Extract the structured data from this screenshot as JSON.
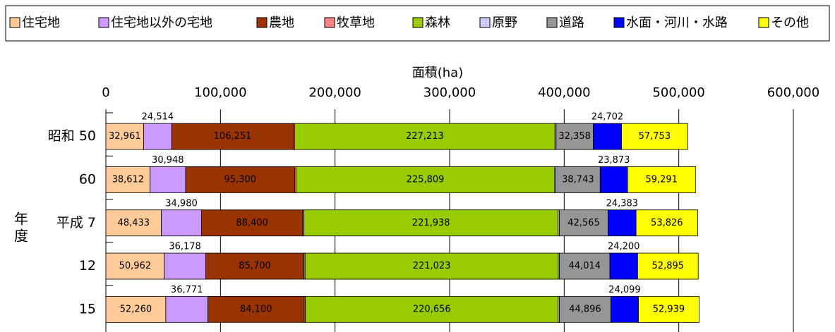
{
  "chart_data": {
    "type": "stacked_bar_horizontal",
    "x_axis_label": "面積(ha)",
    "y_axis_label": "年度",
    "categories": [
      "昭和 50",
      "60",
      "平成 7",
      "12",
      "15"
    ],
    "xlim": [
      0,
      600000
    ],
    "xticks": [
      0,
      {
        "value": 100000,
        "label": "100,000"
      },
      {
        "value": 200000,
        "label": "200,000"
      },
      {
        "value": 300000,
        "label": "300,000"
      },
      {
        "value": 400000,
        "label": "400,000"
      },
      {
        "value": 500000,
        "label": "500,000"
      },
      {
        "value": 600000,
        "label": "600,000"
      }
    ],
    "grid": true,
    "legend": "top",
    "series": [
      {
        "name": "住宅地",
        "color": "#ffcc99",
        "values": [
          32961,
          38612,
          48433,
          50962,
          52260
        ],
        "value_labels": [
          "32,961",
          "38,612",
          "48,433",
          "50,962",
          "52,260"
        ]
      },
      {
        "name": "住宅地以外の宅地",
        "color": "#cc99ff",
        "values": [
          24514,
          30948,
          34980,
          36178,
          36771
        ],
        "value_labels": [
          "24,514",
          "30,948",
          "34,980",
          "36,178",
          "36,771"
        ]
      },
      {
        "name": "農地",
        "color": "#993300",
        "values": [
          106251,
          95300,
          88400,
          85700,
          84100
        ],
        "value_labels": [
          "106,251",
          "95,300",
          "88,400",
          "85,700",
          "84,100"
        ]
      },
      {
        "name": "牧草地",
        "color": "#ff8080",
        "values": [
          1000,
          1000,
          1000,
          1000,
          1000
        ]
      },
      {
        "name": "森林",
        "color": "#99cc00",
        "values": [
          227213,
          225809,
          221938,
          221023,
          220656
        ],
        "value_labels": [
          "227,213",
          "225,809",
          "221,938",
          "221,023",
          "220,656"
        ]
      },
      {
        "name": "原野",
        "color": "#ccccff",
        "values": [
          1000,
          1000,
          1000,
          1000,
          1000
        ]
      },
      {
        "name": "道路",
        "color": "#969696",
        "values": [
          32358,
          38743,
          42565,
          44014,
          44896
        ],
        "value_labels": [
          "32,358",
          "38,743",
          "42,565",
          "44,014",
          "44,896"
        ]
      },
      {
        "name": "水面・河川・水路",
        "color": "#0000ff",
        "values": [
          24702,
          23873,
          24383,
          24200,
          24099
        ],
        "value_labels": [
          "24,702",
          "23,873",
          "24,383",
          "24,200",
          "24,099"
        ]
      },
      {
        "name": "その他",
        "color": "#ffff00",
        "values": [
          57753,
          59291,
          53826,
          52895,
          52939
        ],
        "value_labels": [
          "57,753",
          "59,291",
          "53,826",
          "52,895",
          "52,939"
        ]
      }
    ]
  }
}
